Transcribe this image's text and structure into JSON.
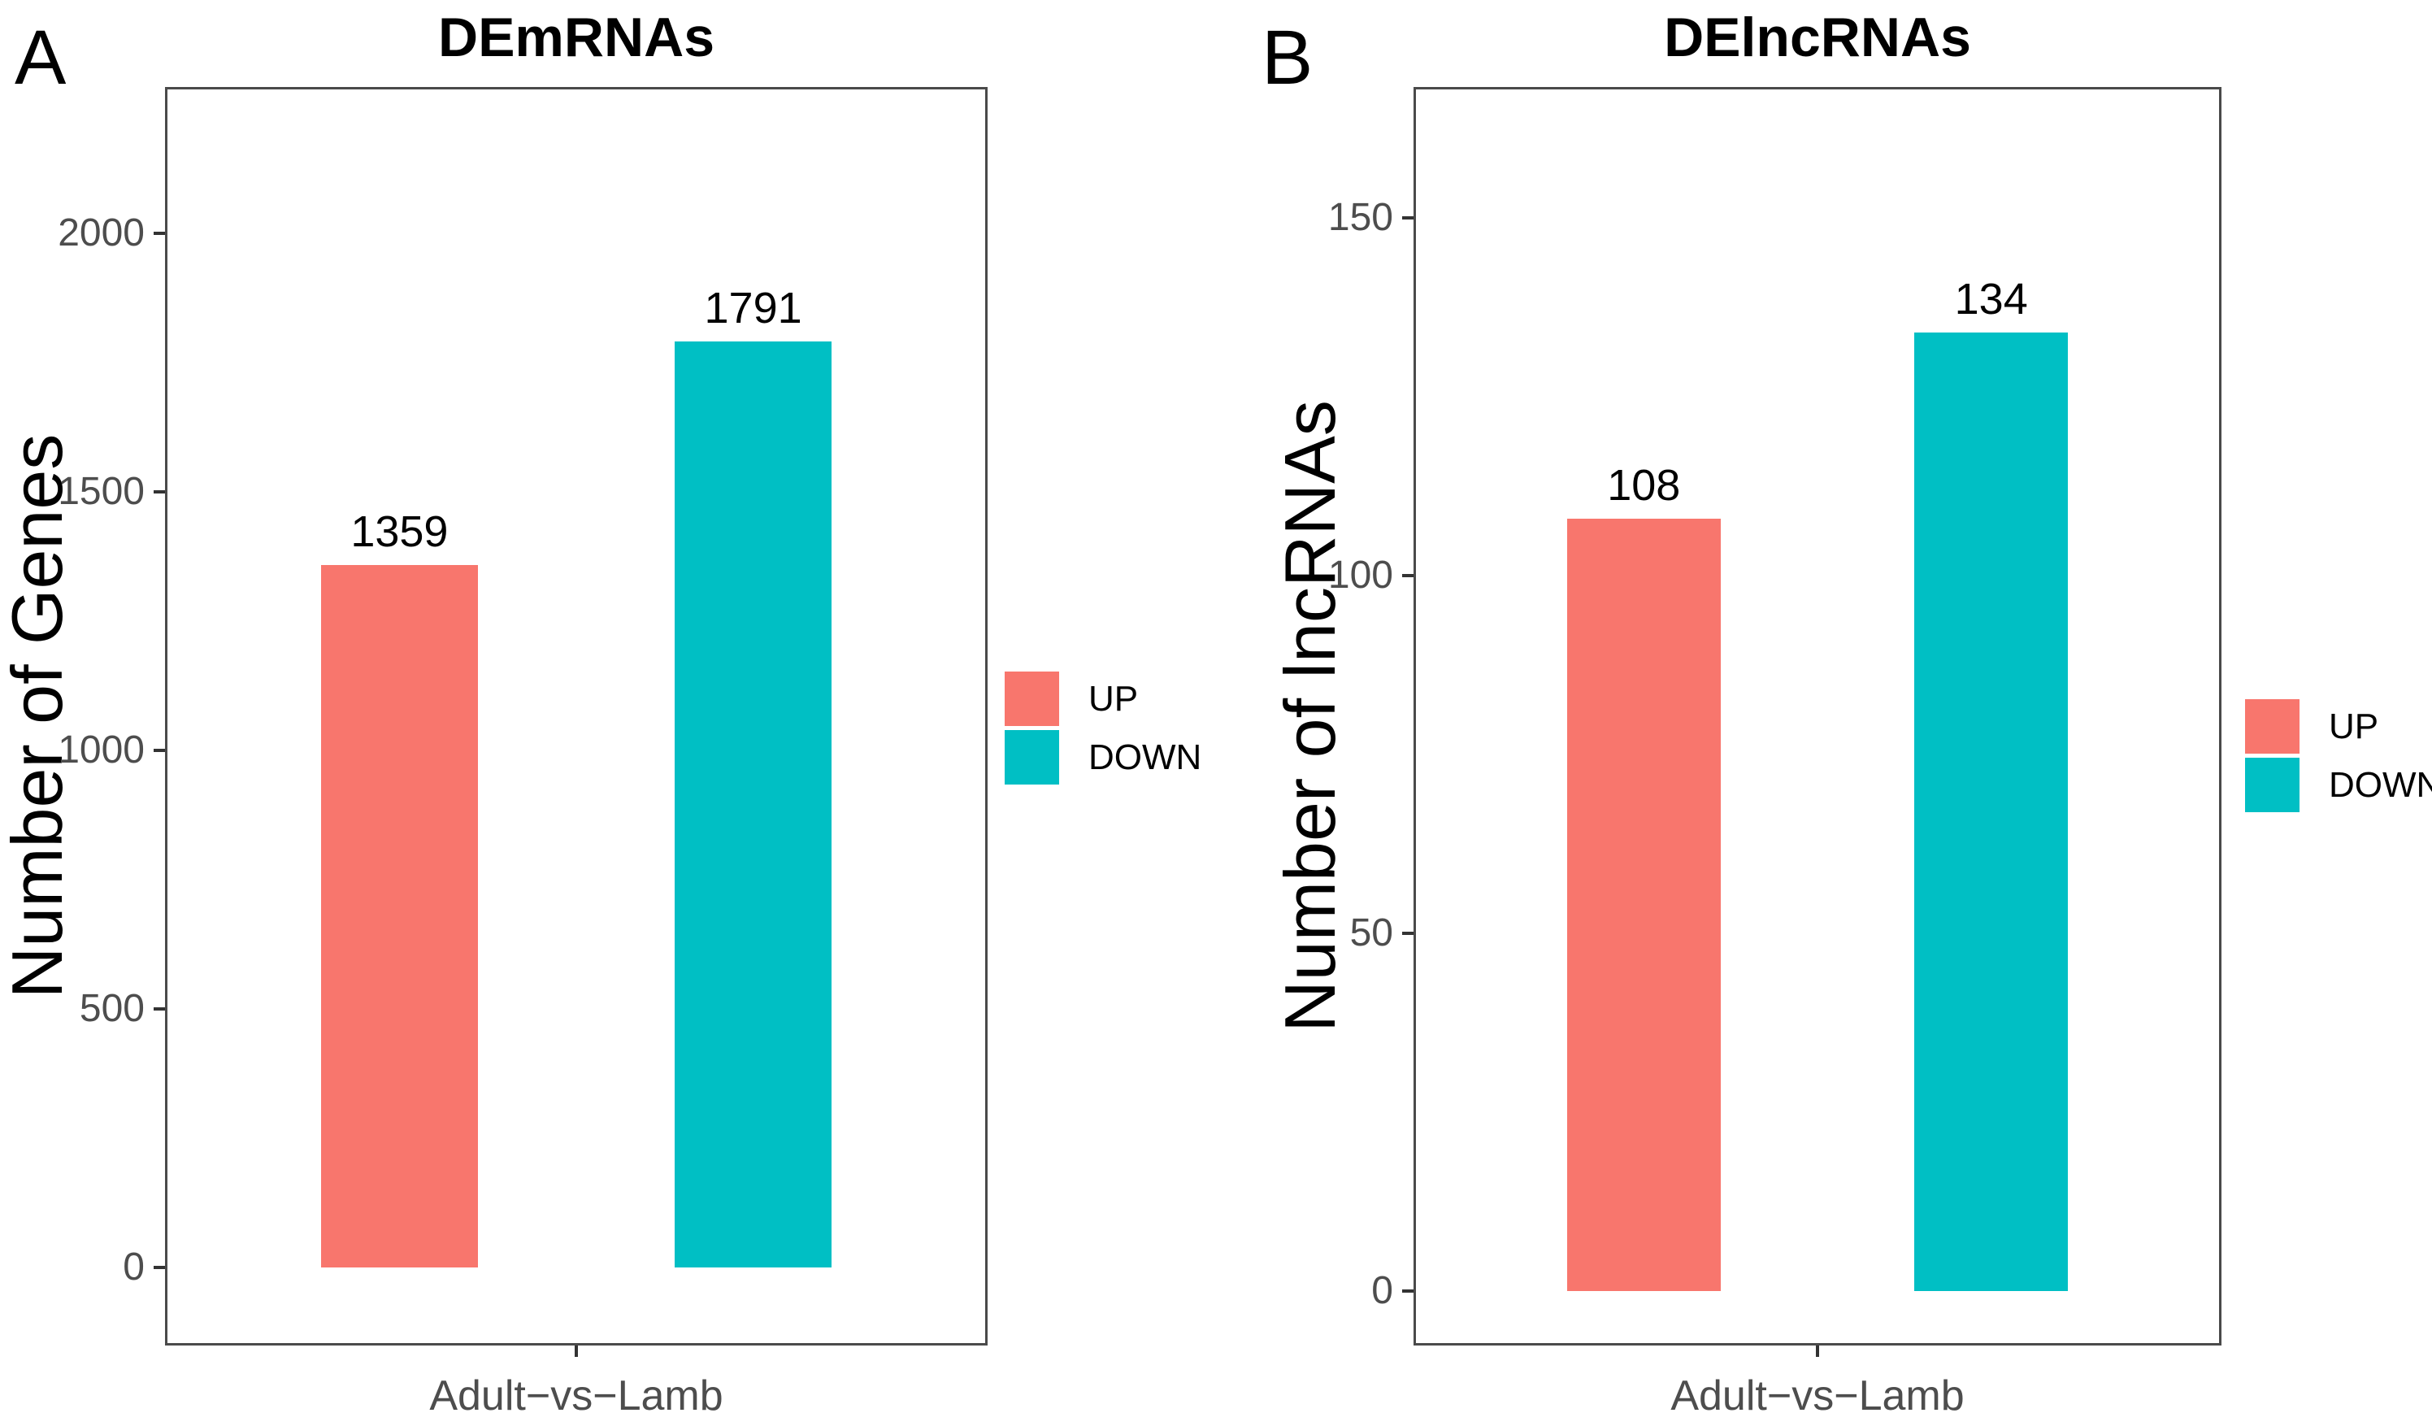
{
  "figure": {
    "background": "#ffffff",
    "panel_labels": [
      "A",
      "B"
    ],
    "legend": {
      "position": "right",
      "items": [
        {
          "label": "UP",
          "color": "#F8766D"
        },
        {
          "label": "DOWN",
          "color": "#00BFC4"
        }
      ]
    }
  },
  "chart_data": [
    {
      "type": "bar",
      "panel_label": "A",
      "title": "DEmRNAs",
      "xlabel": "",
      "ylabel": "Number of Genes",
      "categories": [
        "Adult−vs−Lamb"
      ],
      "series": [
        {
          "name": "UP",
          "values": [
            1359
          ],
          "color": "#F8766D"
        },
        {
          "name": "DOWN",
          "values": [
            1791
          ],
          "color": "#00BFC4"
        }
      ],
      "bar_value_labels": [
        "1359",
        "1791"
      ],
      "yticks": [
        0,
        500,
        1000,
        1500,
        2000
      ],
      "ylim": [
        0,
        2200
      ],
      "grid": false,
      "legend_position": "right"
    },
    {
      "type": "bar",
      "panel_label": "B",
      "title": "DElncRNAs",
      "xlabel": "",
      "ylabel": "Number of lncRNAs",
      "categories": [
        "Adult−vs−Lamb"
      ],
      "series": [
        {
          "name": "UP",
          "values": [
            108
          ],
          "color": "#F8766D"
        },
        {
          "name": "DOWN",
          "values": [
            134
          ],
          "color": "#00BFC4"
        }
      ],
      "bar_value_labels": [
        "108",
        "134"
      ],
      "yticks": [
        0,
        50,
        100,
        150
      ],
      "ylim": [
        0,
        160
      ],
      "grid": false,
      "legend_position": "right"
    }
  ]
}
